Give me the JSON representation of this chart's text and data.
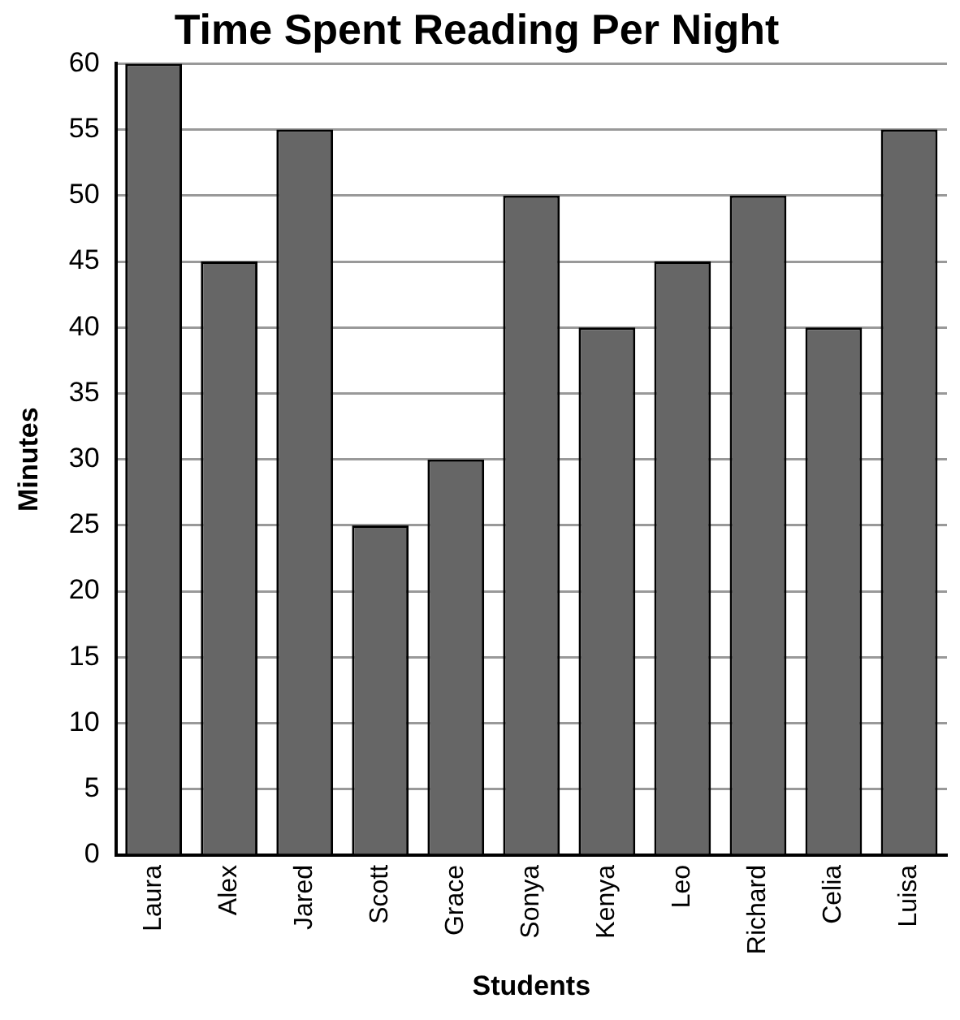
{
  "chart_data": {
    "type": "bar",
    "title": "Time Spent Reading Per Night",
    "xlabel": "Students",
    "ylabel": "Minutes",
    "categories": [
      "Laura",
      "Alex",
      "Jared",
      "Scott",
      "Grace",
      "Sonya",
      "Kenya",
      "Leo",
      "Richard",
      "Celia",
      "Luisa"
    ],
    "values": [
      60,
      45,
      55,
      25,
      30,
      50,
      40,
      45,
      50,
      40,
      55
    ],
    "color": "#666666",
    "ylim": [
      0,
      60
    ],
    "yticks": [
      0,
      5,
      10,
      15,
      20,
      25,
      30,
      35,
      40,
      45,
      50,
      55,
      60
    ],
    "grid": "y"
  }
}
